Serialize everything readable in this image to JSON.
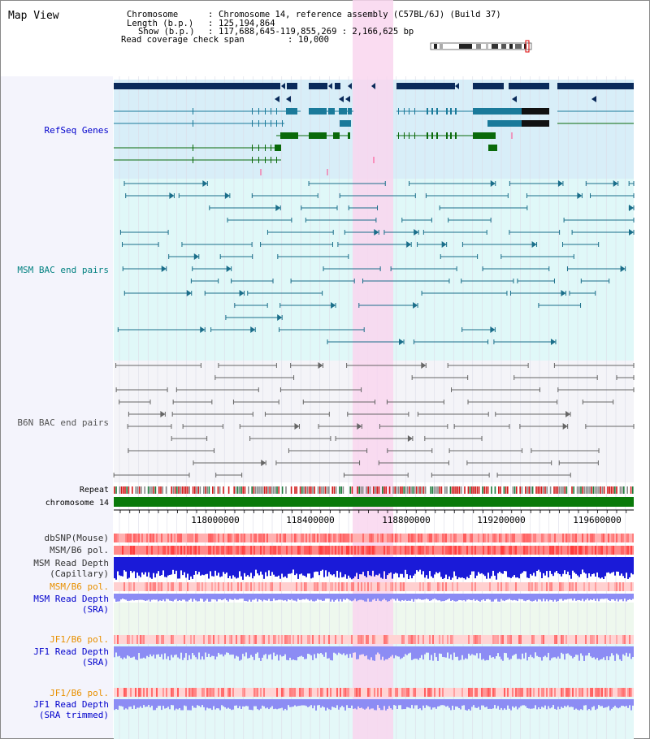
{
  "title": "Map View",
  "info": {
    "chromosome_label": "Chromosome",
    "chromosome_value": "Chromosome 14, reference assembly (C57BL/6J) (Build 37)",
    "length_label": "Length (b.p.)",
    "length_value": "125,194,864",
    "show_label": "Show (b.p.)",
    "show_value": "117,688,645-119,855,269 : 2,166,625 bp",
    "coverage_label": "Read coverage check span",
    "coverage_value": "10,000"
  },
  "tracks": {
    "refseq": "RefSeq Genes",
    "msm_bac": "MSM BAC end pairs",
    "b6n_bac": "B6N BAC end pairs",
    "repeat": "Repeat",
    "chromosome": "chromosome 14",
    "dbsnp": "dbSNP(Mouse)",
    "msm_b6_pol_1": "MSM/B6 pol.",
    "msm_depth_cap_1": "MSM Read Depth",
    "msm_depth_cap_2": "(Capillary)",
    "msm_b6_pol_2": "MSM/B6 pol.",
    "msm_depth_sra_1": "MSM Read Depth",
    "msm_depth_sra_2": "(SRA)",
    "jf1_pol_1": "JF1/B6 pol.",
    "jf1_depth_sra_1": "JF1 Read Depth",
    "jf1_depth_sra_2": "(SRA)",
    "jf1_pol_2": "JF1/B6 pol.",
    "jf1_depth_trim_1": "JF1 Read Depth",
    "jf1_depth_trim_2": "(SRA trimmed)"
  },
  "axis": {
    "ticks": [
      "118000000",
      "118400000",
      "118800000",
      "119200000",
      "119600000"
    ]
  },
  "colors": {
    "frame_bg": "#f4f4fc",
    "gridline": "#d8d8e4",
    "refseq_bg": "#d8eef8",
    "msm_bg": "#e0f8f8",
    "b6n_bg": "#f4f4f8",
    "highlight": "#f9d6ef",
    "navy": "#0a2a5a",
    "teal": "#1a7a9a",
    "green": "#0a6a0a",
    "chromosome_bar": "#0a7a0a",
    "depth_blue": "#1a1ad8",
    "depth_light": "#8c8cf4",
    "pol_red": "#ff6a6a",
    "label_blue": "#0000cc",
    "label_teal": "#008080",
    "label_orange": "#e89000"
  }
}
